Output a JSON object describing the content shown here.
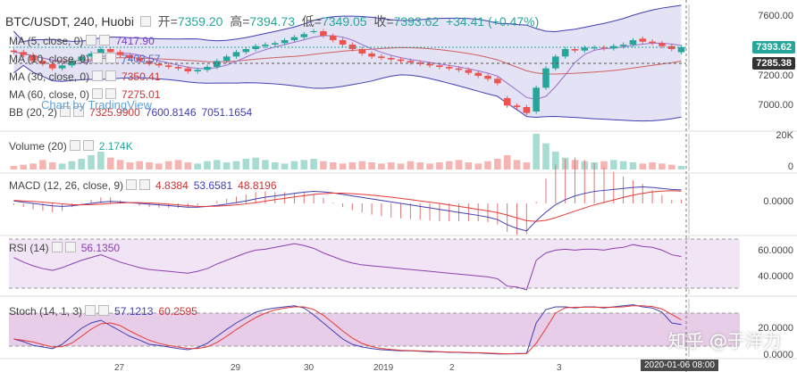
{
  "header": {
    "symbol": "BTC/USDT, 240, Huobi",
    "open_label": "开=",
    "open": "7359.20",
    "high_label": "高=",
    "high": "7394.73",
    "low_label": "低=",
    "low": "7349.05",
    "close_label": "收=",
    "close": "7393.62",
    "change": "+34.41 (+0.47%)"
  },
  "indicators": {
    "ma5": {
      "name": "MA (5, close, 0)",
      "value": "7417.90",
      "color": "#7b3fbf"
    },
    "ma10": {
      "name": "MA (10, close, 0)",
      "value": "7403.57",
      "color": "#4c6bd1"
    },
    "ma30": {
      "name": "MA (30, close, 0)",
      "value": "7350.41",
      "color": "#c33"
    },
    "ma60": {
      "name": "MA (60, close, 0)",
      "value": "7275.01",
      "color": "#c33"
    },
    "bb": {
      "name": "BB (20, 2)",
      "mid": "7325.9900",
      "upper": "7600.8146",
      "lower": "7051.1654"
    },
    "volume": {
      "name": "Volume (20)",
      "value": "2.174K"
    },
    "macd": {
      "name": "MACD (12, 26, close, 9)",
      "hist": "4.8384",
      "macd": "53.6581",
      "signal": "48.8196"
    },
    "rsi": {
      "name": "RSI (14)",
      "value": "56.1350"
    },
    "stoch": {
      "name": "Stoch (14, 1, 3)",
      "k": "57.1213",
      "d": "60.2595"
    }
  },
  "tradingview_label": "Chart by TradingView",
  "price_tags": {
    "last": "7393.62",
    "ref": "7285.38"
  },
  "axes": {
    "price_ticks": [
      "7600.00",
      "7400.00",
      "7200.00",
      "7000.00"
    ],
    "volume_ticks": [
      "20K",
      "0"
    ],
    "macd_ticks": [
      "0.0000"
    ],
    "rsi_ticks": [
      "60.0000",
      "40.0000"
    ],
    "stoch_ticks": [
      "20.0000",
      "0.0000"
    ],
    "time_ticks": [
      "27",
      "29",
      "30",
      "2019",
      "2",
      "3"
    ],
    "time_badge": "2020-01-06  08:00"
  },
  "watermark": "知乎 @于洋力",
  "colors": {
    "up": "#26a69a",
    "down": "#ef5350",
    "bb": "#3f3fb0",
    "bbfill": "#e3e3f5",
    "rsi": "#8b3fb0"
  },
  "chart_data": {
    "type": "candlestick",
    "title": "BTC/USDT, 240, Huobi",
    "ohlc_approx": {
      "close": [
        7360,
        7340,
        7300,
        7280,
        7250,
        7270,
        7300,
        7330,
        7350,
        7380,
        7360,
        7340,
        7320,
        7300,
        7280,
        7270,
        7260,
        7250,
        7230,
        7240,
        7260,
        7300,
        7330,
        7360,
        7380,
        7400,
        7410,
        7420,
        7440,
        7460,
        7480,
        7500,
        7470,
        7440,
        7410,
        7380,
        7350,
        7330,
        7320,
        7310,
        7300,
        7290,
        7280,
        7270,
        7260,
        7250,
        7240,
        7220,
        7200,
        7180,
        7150,
        7000,
        6990,
        6950,
        7120,
        7250,
        7330,
        7380,
        7370,
        7390,
        7390,
        7385,
        7400,
        7410,
        7440,
        7430,
        7420,
        7400,
        7380,
        7393
      ],
      "open": [
        7370,
        7360,
        7340,
        7300,
        7280,
        7250,
        7270,
        7300,
        7330,
        7350,
        7380,
        7360,
        7340,
        7320,
        7300,
        7280,
        7270,
        7260,
        7250,
        7230,
        7240,
        7260,
        7300,
        7330,
        7360,
        7380,
        7400,
        7410,
        7420,
        7440,
        7460,
        7500,
        7500,
        7470,
        7440,
        7410,
        7380,
        7350,
        7330,
        7320,
        7310,
        7300,
        7290,
        7280,
        7270,
        7260,
        7250,
        7240,
        7220,
        7200,
        7180,
        7050,
        7000,
        6990,
        6960,
        7120,
        7250,
        7330,
        7380,
        7370,
        7390,
        7390,
        7385,
        7400,
        7410,
        7450,
        7430,
        7420,
        7400,
        7359
      ]
    },
    "ylim": [
      6900,
      7650
    ],
    "volume": [
      3,
      4,
      5,
      8,
      6,
      5,
      7,
      9,
      12,
      15,
      10,
      8,
      6,
      7,
      6,
      5,
      7,
      8,
      6,
      5,
      7,
      8,
      6,
      7,
      9,
      10,
      8,
      6,
      5,
      7,
      8,
      9,
      7,
      6,
      5,
      6,
      7,
      6,
      5,
      6,
      5,
      7,
      6,
      5,
      6,
      7,
      8,
      6,
      5,
      7,
      9,
      12,
      8,
      6,
      30,
      22,
      15,
      10,
      8,
      7,
      6,
      7,
      8,
      7,
      6,
      5,
      6,
      5,
      4,
      3
    ],
    "rsi": [
      55,
      50,
      46,
      43,
      41,
      44,
      48,
      52,
      55,
      58,
      54,
      50,
      47,
      44,
      42,
      41,
      40,
      39,
      38,
      40,
      43,
      48,
      52,
      56,
      60,
      63,
      64,
      66,
      68,
      70,
      68,
      65,
      60,
      56,
      52,
      49,
      47,
      46,
      45,
      44,
      43,
      42,
      41,
      40,
      39,
      38,
      37,
      36,
      35,
      34,
      32,
      24,
      23,
      20,
      52,
      60,
      63,
      64,
      63,
      64,
      64,
      63,
      65,
      66,
      69,
      67,
      66,
      63,
      58,
      56
    ],
    "stoch_k": [
      30,
      25,
      18,
      15,
      12,
      20,
      35,
      50,
      60,
      65,
      55,
      45,
      35,
      28,
      20,
      18,
      15,
      12,
      10,
      14,
      22,
      35,
      48,
      60,
      70,
      80,
      85,
      88,
      90,
      92,
      88,
      75,
      60,
      45,
      30,
      20,
      15,
      12,
      10,
      9,
      8,
      8,
      7,
      6,
      6,
      5,
      5,
      4,
      4,
      3,
      2,
      2,
      3,
      3,
      60,
      85,
      90,
      90,
      88,
      90,
      90,
      88,
      90,
      92,
      94,
      90,
      88,
      80,
      60,
      57
    ],
    "macd": [
      10,
      5,
      0,
      -5,
      -10,
      -12,
      -10,
      -5,
      0,
      5,
      8,
      6,
      3,
      0,
      -3,
      -6,
      -9,
      -12,
      -15,
      -15,
      -12,
      -8,
      -3,
      3,
      10,
      18,
      25,
      30,
      35,
      40,
      45,
      48,
      46,
      42,
      36,
      30,
      24,
      18,
      12,
      6,
      0,
      -6,
      -12,
      -18,
      -24,
      -30,
      -36,
      -42,
      -48,
      -55,
      -65,
      -85,
      -100,
      -110,
      -70,
      -35,
      -5,
      15,
      30,
      40,
      48,
      52,
      56,
      60,
      64,
      66,
      64,
      60,
      56,
      54
    ],
    "signal": [
      12,
      10,
      8,
      5,
      2,
      -2,
      -5,
      -6,
      -5,
      -3,
      0,
      2,
      3,
      3,
      2,
      0,
      -3,
      -6,
      -9,
      -12,
      -12,
      -11,
      -9,
      -6,
      -2,
      3,
      9,
      15,
      20,
      26,
      31,
      36,
      39,
      41,
      41,
      39,
      36,
      33,
      29,
      25,
      20,
      15,
      10,
      5,
      0,
      -6,
      -12,
      -18,
      -24,
      -30,
      -37,
      -47,
      -58,
      -69,
      -72,
      -68,
      -57,
      -44,
      -31,
      -18,
      -6,
      4,
      14,
      24,
      33,
      40,
      46,
      49,
      51,
      49
    ]
  }
}
